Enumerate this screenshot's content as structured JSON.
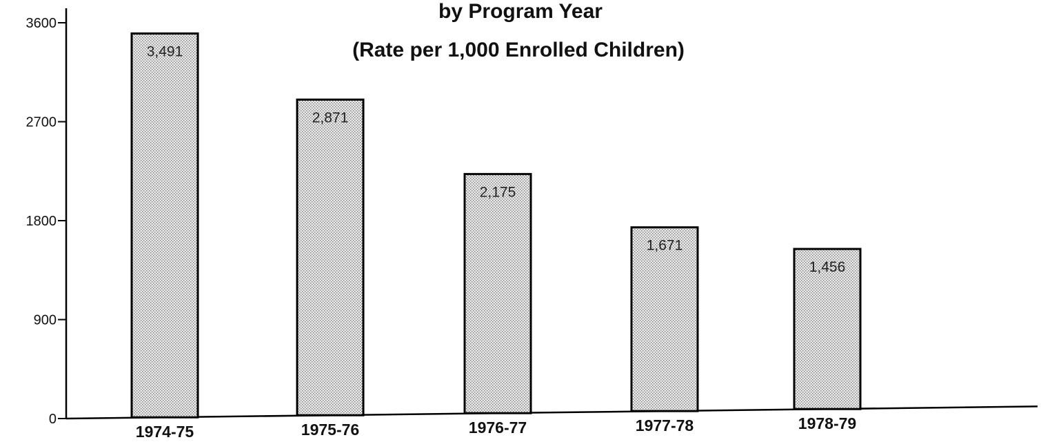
{
  "chart_data": {
    "type": "bar",
    "title": "by Program Year",
    "subtitle": "(Rate per 1,000 Enrolled Children)",
    "categories": [
      "1974-75",
      "1975-76",
      "1976-77",
      "1977-78",
      "1978-79"
    ],
    "values": [
      3491,
      2871,
      2175,
      1671,
      1456
    ],
    "value_labels": [
      "3,491",
      "2,871",
      "2,175",
      "1,671",
      "1,456"
    ],
    "yticks": [
      0,
      900,
      1800,
      2700,
      3600
    ],
    "ylim": [
      0,
      3600
    ],
    "xlabel": "",
    "ylabel": "",
    "grid": false,
    "bar_fill": "stippled gray",
    "colors": {
      "bar": "#d9d9d9",
      "axis": "#000000",
      "text": "#111111"
    }
  }
}
